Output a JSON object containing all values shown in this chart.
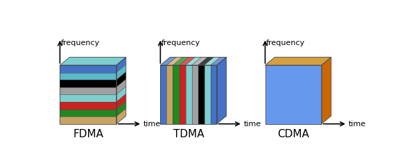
{
  "background_color": "#ffffff",
  "title_fontsize": 11,
  "label_fontsize": 8,
  "fdma": {
    "label": "FDMA",
    "front_face_colors": [
      "#4472c4",
      "#5ab8c8",
      "#000000",
      "#a0a0a0",
      "#7ecece",
      "#cc2222",
      "#228822",
      "#c8a464"
    ],
    "top_color": "#7ecece",
    "right_stripe_colors": [
      "#4472c4",
      "#5ab8c8",
      "#000000",
      "#a0a0a0",
      "#7ecece",
      "#cc2222",
      "#228822",
      "#c8a464"
    ]
  },
  "tdma": {
    "label": "TDMA",
    "front_face_colors": [
      "#4472c4",
      "#c8a464",
      "#228822",
      "#cc2222",
      "#7ecece",
      "#a0a0a0",
      "#000000",
      "#7ecece",
      "#4472c4"
    ],
    "top_color": "#7ecece",
    "side_color": "#4472c4"
  },
  "cdma": {
    "label": "CDMA",
    "front_color": "#6699ee",
    "top_color": "#d4a040",
    "right_color": "#cc6600"
  }
}
